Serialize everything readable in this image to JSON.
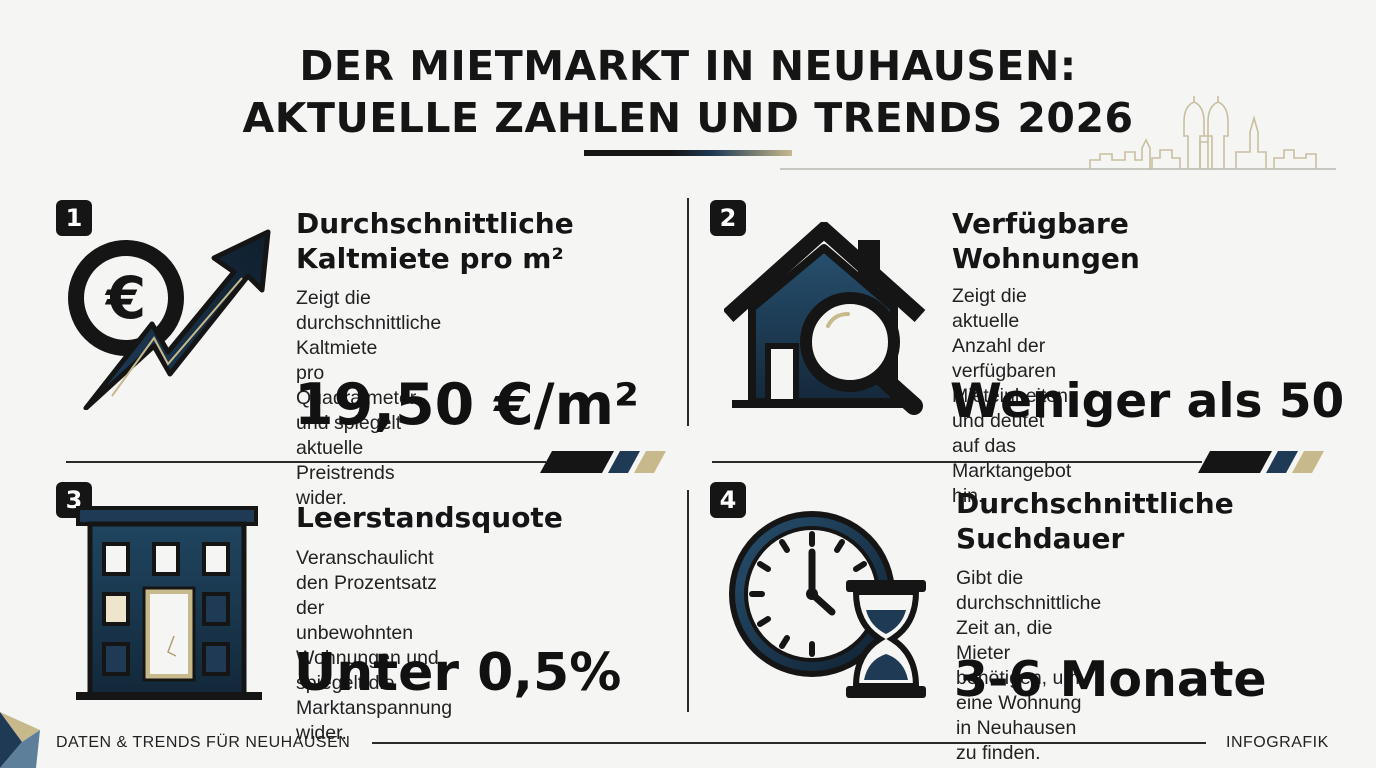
{
  "header": {
    "title_line1": "DER MIETMARKT IN NEUHAUSEN:",
    "title_line2": "AKTUELLE ZAHLEN UND TRENDS 2026"
  },
  "colors": {
    "dark": "#151515",
    "navy": "#1e3a55",
    "gold": "#c8b98c"
  },
  "cards": [
    {
      "number": "1",
      "heading_line1": "Durchschnittliche",
      "heading_line2": "Kaltmiete pro m²",
      "desc_line1": "Zeigt die durchschnittliche Kaltmiete",
      "desc_line2": "pro Quadratmeter und spiegelt",
      "desc_line3": "aktuelle Preistrends wider.",
      "value": "19,50 €/m²",
      "icon": "euro-trend-arrow-icon"
    },
    {
      "number": "2",
      "heading_line1": "Verfügbare",
      "heading_line2": "Wohnungen",
      "desc_line1": "Zeigt die aktuelle Anzahl der",
      "desc_line2": "verfügbaren Mieteinheiten und deutet",
      "desc_line3": "auf das Marktangebot hin.",
      "value": "Weniger als 50",
      "icon": "house-magnifier-icon"
    },
    {
      "number": "3",
      "heading_line1": "Leerstandsquote",
      "desc_line1": "Veranschaulicht den Prozentsatz der",
      "desc_line2": "unbewohnten Wohnungen und",
      "desc_line3": "spiegelt die Marktanspannung wider.",
      "value": "Unter 0,5%",
      "icon": "apartment-building-icon"
    },
    {
      "number": "4",
      "heading_line1": "Durchschnittliche",
      "heading_line2": "Suchdauer",
      "desc_line1": "Gibt die durchschnittliche Zeit an, die",
      "desc_line2": "Mieter benötigen, um eine Wohnung",
      "desc_line3": "in Neuhausen zu finden.",
      "value": "3-6 Monate",
      "icon": "clock-hourglass-icon"
    }
  ],
  "footer": {
    "left_text": "DATEN & TRENDS FÜR NEUHAUSEN",
    "right_text": "INFOGRAFIK"
  }
}
